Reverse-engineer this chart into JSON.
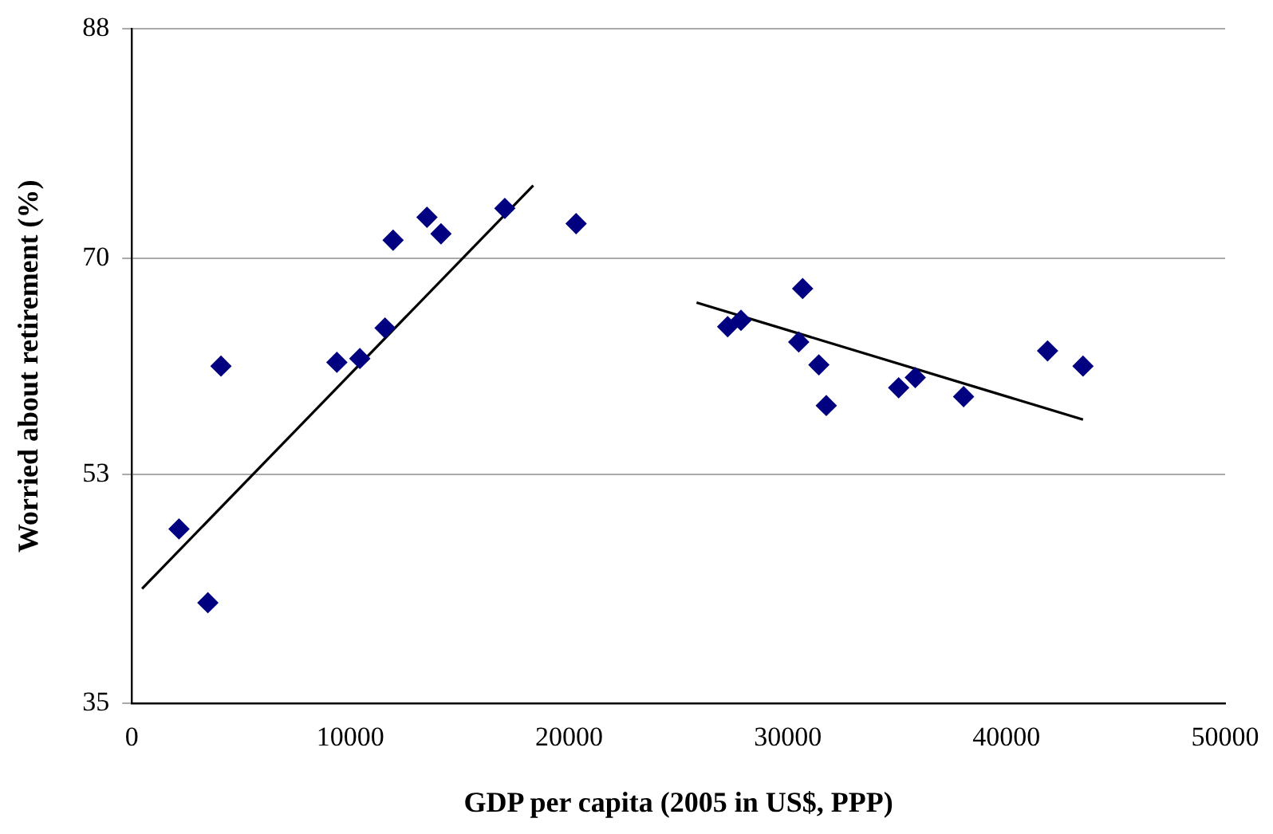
{
  "chart_data": {
    "type": "scatter",
    "xlabel": "GDP per capita (2005 in US$, PPP)",
    "ylabel": "Worried about retirement (%)",
    "xlim": [
      0,
      50000
    ],
    "xticks": [
      0,
      10000,
      20000,
      30000,
      40000,
      50000
    ],
    "ylim": [
      35,
      88
    ],
    "yticks": [
      35,
      53,
      70,
      88
    ],
    "grid": "y",
    "legend": false,
    "series": [
      {
        "color": "#000080",
        "marker": "diamond",
        "x": [
          2160,
          3480,
          4080,
          9380,
          10430,
          11580,
          11950,
          13500,
          14140,
          17060,
          20320,
          27250,
          27860,
          30680,
          30500,
          31420,
          31760,
          35070,
          35830,
          38040,
          41880,
          43500
        ],
        "values": [
          48.7,
          42.9,
          61.5,
          61.8,
          62.1,
          64.5,
          71.4,
          73.2,
          71.9,
          73.9,
          72.7,
          64.6,
          65.1,
          67.6,
          63.4,
          61.6,
          58.4,
          59.8,
          60.6,
          59.1,
          62.7,
          61.5
        ]
      },
      {
        "type": "line",
        "marker": "none",
        "color": "#000000",
        "x": [
          470,
          18360
        ],
        "values": [
          44.0,
          75.7
        ]
      },
      {
        "type": "line",
        "marker": "none",
        "color": "#000000",
        "x": [
          25830,
          43500
        ],
        "values": [
          66.5,
          57.3
        ]
      }
    ]
  }
}
